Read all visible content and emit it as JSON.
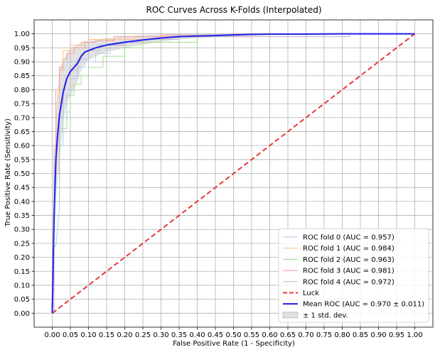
{
  "chart_data": {
    "type": "line",
    "title": "ROC Curves Across K-Folds (Interpolated)",
    "xlabel": "False Positive Rate (1 - Specificity)",
    "ylabel": "True Positive Rate (Sensitivity)",
    "xlim": [
      -0.05,
      1.05
    ],
    "ylim": [
      -0.05,
      1.05
    ],
    "xticks": [
      "0.00",
      "0.05",
      "0.10",
      "0.15",
      "0.20",
      "0.25",
      "0.30",
      "0.35",
      "0.40",
      "0.45",
      "0.50",
      "0.55",
      "0.60",
      "0.65",
      "0.70",
      "0.75",
      "0.80",
      "0.85",
      "0.90",
      "0.95",
      "1.00"
    ],
    "yticks": [
      "0.00",
      "0.05",
      "0.10",
      "0.15",
      "0.20",
      "0.25",
      "0.30",
      "0.35",
      "0.40",
      "0.45",
      "0.50",
      "0.55",
      "0.60",
      "0.65",
      "0.70",
      "0.75",
      "0.80",
      "0.85",
      "0.90",
      "0.95",
      "1.00"
    ],
    "grid": true,
    "legend_position": "lower-right",
    "series": [
      {
        "name": "ROC fold 0 (AUC = 0.957)",
        "color": "#aec7e8",
        "style": "step",
        "x": [
          0,
          0.005,
          0.01,
          0.02,
          0.02,
          0.03,
          0.03,
          0.04,
          0.04,
          0.05,
          0.05,
          0.07,
          0.07,
          0.09,
          0.09,
          0.12,
          0.12,
          0.16,
          0.16,
          0.2,
          0.2,
          0.25,
          0.25,
          0.35,
          0.35,
          0.55,
          0.55,
          1
        ],
        "y": [
          0,
          0.24,
          0.24,
          0.38,
          0.6,
          0.6,
          0.7,
          0.7,
          0.78,
          0.78,
          0.84,
          0.84,
          0.88,
          0.88,
          0.9,
          0.9,
          0.93,
          0.93,
          0.96,
          0.96,
          0.97,
          0.97,
          0.98,
          0.98,
          0.99,
          0.99,
          1,
          1
        ]
      },
      {
        "name": "ROC fold 1 (AUC = 0.984)",
        "color": "#ffbb78",
        "style": "step",
        "x": [
          0,
          0.005,
          0.005,
          0.01,
          0.01,
          0.02,
          0.02,
          0.03,
          0.03,
          0.05,
          0.05,
          0.08,
          0.08,
          0.1,
          0.1,
          0.3,
          0.3,
          0.55,
          0.55,
          1
        ],
        "y": [
          0,
          0,
          0.55,
          0.55,
          0.75,
          0.75,
          0.87,
          0.87,
          0.94,
          0.94,
          0.96,
          0.96,
          0.97,
          0.97,
          0.98,
          0.98,
          0.99,
          0.99,
          1,
          1
        ]
      },
      {
        "name": "ROC fold 2 (AUC = 0.963)",
        "color": "#98df8a",
        "style": "step",
        "x": [
          0,
          0.005,
          0.005,
          0.02,
          0.02,
          0.04,
          0.04,
          0.05,
          0.05,
          0.06,
          0.06,
          0.08,
          0.08,
          0.1,
          0.1,
          0.14,
          0.14,
          0.2,
          0.2,
          0.25,
          0.25,
          0.4,
          0.4,
          0.5,
          0.5,
          1
        ],
        "y": [
          0,
          0,
          0.4,
          0.4,
          0.66,
          0.66,
          0.72,
          0.72,
          0.78,
          0.78,
          0.82,
          0.82,
          0.85,
          0.85,
          0.88,
          0.88,
          0.92,
          0.92,
          0.95,
          0.95,
          0.97,
          0.97,
          0.99,
          0.99,
          1,
          1
        ]
      },
      {
        "name": "ROC fold 3 (AUC = 0.981)",
        "color": "#ff9896",
        "style": "step",
        "x": [
          0,
          0.005,
          0.005,
          0.01,
          0.01,
          0.02,
          0.02,
          0.03,
          0.03,
          0.04,
          0.04,
          0.06,
          0.06,
          0.09,
          0.09,
          0.12,
          0.12,
          0.17,
          0.17,
          0.3,
          0.3,
          0.5,
          0.5,
          1
        ],
        "y": [
          0,
          0,
          0.6,
          0.6,
          0.8,
          0.8,
          0.88,
          0.88,
          0.91,
          0.91,
          0.93,
          0.93,
          0.95,
          0.95,
          0.97,
          0.97,
          0.975,
          0.975,
          0.99,
          0.99,
          0.995,
          0.995,
          1,
          1
        ]
      },
      {
        "name": "ROC fold 4 (AUC = 0.972)",
        "color": "#c5b0d5",
        "style": "step",
        "x": [
          0,
          0.005,
          0.005,
          0.02,
          0.02,
          0.03,
          0.03,
          0.05,
          0.05,
          0.07,
          0.07,
          0.1,
          0.1,
          0.13,
          0.13,
          0.2,
          0.2,
          0.25,
          0.25,
          0.35,
          0.35,
          0.82,
          0.82,
          1
        ],
        "y": [
          0,
          0,
          0.5,
          0.5,
          0.7,
          0.7,
          0.8,
          0.8,
          0.87,
          0.87,
          0.91,
          0.91,
          0.94,
          0.94,
          0.96,
          0.96,
          0.97,
          0.97,
          0.98,
          0.98,
          0.99,
          0.99,
          1,
          1
        ]
      },
      {
        "name": "Luck",
        "color": "#e8383b",
        "style": "dashed",
        "x": [
          0,
          1
        ],
        "y": [
          0,
          1
        ]
      },
      {
        "name": "Mean ROC (AUC = 0.970 ± 0.011)",
        "color": "#2a2ae8",
        "style": "solid",
        "x": [
          0,
          0.005,
          0.01,
          0.015,
          0.02,
          0.03,
          0.04,
          0.05,
          0.06,
          0.07,
          0.08,
          0.09,
          0.1,
          0.12,
          0.15,
          0.2,
          0.25,
          0.3,
          0.35,
          0.4,
          0.45,
          0.5,
          0.55,
          0.6,
          0.7,
          0.8,
          0.9,
          1
        ],
        "y": [
          0,
          0.35,
          0.55,
          0.64,
          0.71,
          0.79,
          0.84,
          0.865,
          0.88,
          0.895,
          0.92,
          0.935,
          0.94,
          0.95,
          0.96,
          0.97,
          0.978,
          0.985,
          0.99,
          0.992,
          0.994,
          0.996,
          0.998,
          0.999,
          0.999,
          1,
          1,
          1
        ]
      }
    ],
    "band": {
      "name": "± 1 std. dev.",
      "color": "#bfbfbf",
      "x": [
        0,
        0.005,
        0.01,
        0.015,
        0.02,
        0.03,
        0.04,
        0.05,
        0.06,
        0.07,
        0.08,
        0.09,
        0.1,
        0.12,
        0.15,
        0.2,
        0.25,
        0.3,
        0.35,
        0.4,
        0.5,
        0.6,
        1
      ],
      "upper": [
        0,
        0.5,
        0.7,
        0.8,
        0.88,
        0.9,
        0.93,
        0.95,
        0.955,
        0.96,
        0.97,
        0.975,
        0.975,
        0.98,
        0.985,
        0.99,
        0.995,
        0.998,
        1,
        1,
        1,
        1,
        1
      ],
      "lower": [
        0,
        0.2,
        0.4,
        0.48,
        0.54,
        0.68,
        0.75,
        0.78,
        0.8,
        0.83,
        0.87,
        0.895,
        0.905,
        0.92,
        0.935,
        0.95,
        0.96,
        0.972,
        0.98,
        0.984,
        0.992,
        0.998,
        1
      ]
    }
  }
}
